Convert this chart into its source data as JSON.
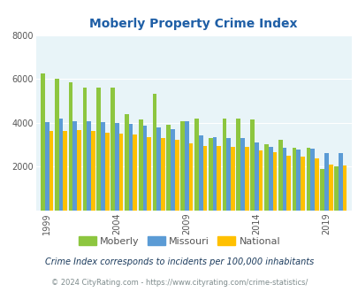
{
  "title": "Moberly Property Crime Index",
  "years": [
    1999,
    2000,
    2001,
    2002,
    2003,
    2004,
    2005,
    2006,
    2007,
    2008,
    2009,
    2010,
    2011,
    2012,
    2013,
    2014,
    2015,
    2016,
    2017,
    2018,
    2019,
    2020
  ],
  "moberly": [
    6250,
    6020,
    5850,
    5580,
    5600,
    5600,
    4380,
    4150,
    5300,
    3900,
    4050,
    4200,
    3300,
    4180,
    4180,
    4150,
    3000,
    3200,
    2850,
    2850,
    1900,
    2000
  ],
  "missouri": [
    4020,
    4200,
    4080,
    4060,
    4020,
    3980,
    3930,
    3850,
    3780,
    3690,
    4060,
    3420,
    3350,
    3310,
    3290,
    3100,
    2880,
    2850,
    2760,
    2800,
    2620,
    2620
  ],
  "national": [
    3620,
    3620,
    3650,
    3630,
    3550,
    3510,
    3440,
    3340,
    3280,
    3210,
    3050,
    2940,
    2950,
    2910,
    2900,
    2750,
    2640,
    2490,
    2460,
    2360,
    2100,
    2050
  ],
  "bar_colors": {
    "moberly": "#8dc63f",
    "missouri": "#5b9bd5",
    "national": "#ffc000"
  },
  "bg_color": "#e8f4f8",
  "ylim": [
    0,
    8000
  ],
  "yticks": [
    0,
    2000,
    4000,
    6000,
    8000
  ],
  "xlabel_ticks": [
    1999,
    2004,
    2009,
    2014,
    2019
  ],
  "legend_labels": [
    "Moberly",
    "Missouri",
    "National"
  ],
  "footnote1": "Crime Index corresponds to incidents per 100,000 inhabitants",
  "footnote2": "© 2024 CityRating.com - https://www.cityrating.com/crime-statistics/",
  "title_color": "#1f5fa6",
  "footnote1_color": "#1a3a5c",
  "footnote2_color": "#7f8c8d",
  "axis_label_color": "#555555",
  "grid_color": "#ffffff"
}
